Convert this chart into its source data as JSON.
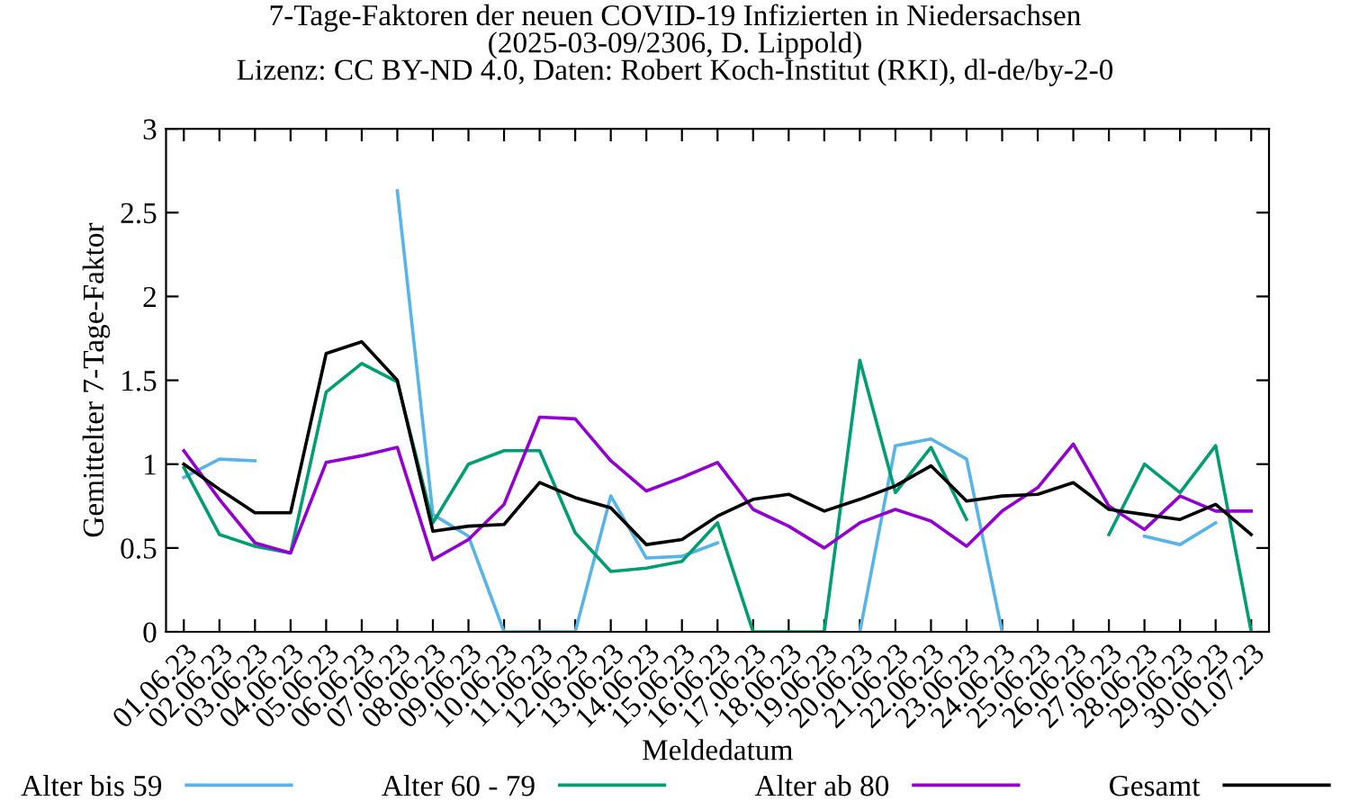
{
  "chart_data": {
    "type": "line",
    "title": "7-Tage-Faktoren der neuen COVID-19 Infizierten in Niedersachsen\n(2025-03-09/2306, D. Lippold)\nLizenz: CC BY-ND 4.0, Daten: Robert Koch-Institut (RKI), dl-de/by-2-0",
    "xlabel": "Meldedatum",
    "ylabel": "Gemittelter 7-Tage-Faktor",
    "categories": [
      "01.06.23",
      "02.06.23",
      "03.06.23",
      "04.06.23",
      "05.06.23",
      "06.06.23",
      "07.06.23",
      "08.06.23",
      "09.06.23",
      "10.06.23",
      "11.06.23",
      "12.06.23",
      "13.06.23",
      "14.06.23",
      "15.06.23",
      "16.06.23",
      "17.06.23",
      "18.06.23",
      "19.06.23",
      "20.06.23",
      "21.06.23",
      "22.06.23",
      "23.06.23",
      "24.06.23",
      "25.06.23",
      "26.06.23",
      "27.06.23",
      "28.06.23",
      "29.06.23",
      "30.06.23",
      "01.07.23"
    ],
    "series": [
      {
        "name": "Alter bis 59",
        "color": "#56b4e9",
        "values": [
          0.92,
          1.03,
          1.02,
          null,
          null,
          null,
          2.63,
          0.7,
          0.57,
          0,
          0,
          0,
          0.81,
          0.44,
          0.45,
          0.53,
          null,
          null,
          null,
          0,
          1.11,
          1.15,
          1.03,
          0,
          null,
          null,
          null,
          0.57,
          0.52,
          0.65,
          null
        ]
      },
      {
        "name": "Alter 60 - 79",
        "color": "#009e73",
        "values": [
          0.98,
          0.58,
          0.51,
          0.47,
          1.43,
          1.6,
          1.49,
          0.65,
          1.0,
          1.08,
          1.08,
          0.59,
          0.36,
          0.38,
          0.42,
          0.65,
          0,
          0,
          0,
          1.62,
          0.83,
          1.1,
          0.67,
          null,
          null,
          null,
          0.58,
          1.0,
          0.83,
          1.11,
          0
        ]
      },
      {
        "name": "Alter ab 80",
        "color": "#9400d3",
        "values": [
          1.08,
          0.79,
          0.53,
          0.47,
          1.01,
          1.05,
          1.1,
          0.43,
          0.55,
          0.76,
          1.28,
          1.27,
          1.02,
          0.84,
          0.92,
          1.01,
          0.73,
          0.63,
          0.5,
          0.65,
          0.73,
          0.66,
          0.51,
          0.72,
          0.86,
          1.12,
          0.75,
          0.61,
          0.81,
          0.72,
          0.72
        ]
      },
      {
        "name": "Gesamt",
        "color": "#000000",
        "values": [
          1.0,
          0.85,
          0.71,
          0.71,
          1.66,
          1.73,
          1.5,
          0.6,
          0.63,
          0.64,
          0.89,
          0.8,
          0.74,
          0.52,
          0.55,
          0.69,
          0.79,
          0.82,
          0.72,
          0.79,
          0.87,
          0.99,
          0.78,
          0.81,
          0.82,
          0.89,
          0.73,
          0.7,
          0.67,
          0.76,
          0.58
        ]
      }
    ],
    "ylim": [
      0,
      3
    ],
    "yticks": [
      0,
      0.5,
      1,
      1.5,
      2,
      2.5,
      3
    ],
    "grid": false,
    "legend": "bottom",
    "line_style": "solid"
  }
}
